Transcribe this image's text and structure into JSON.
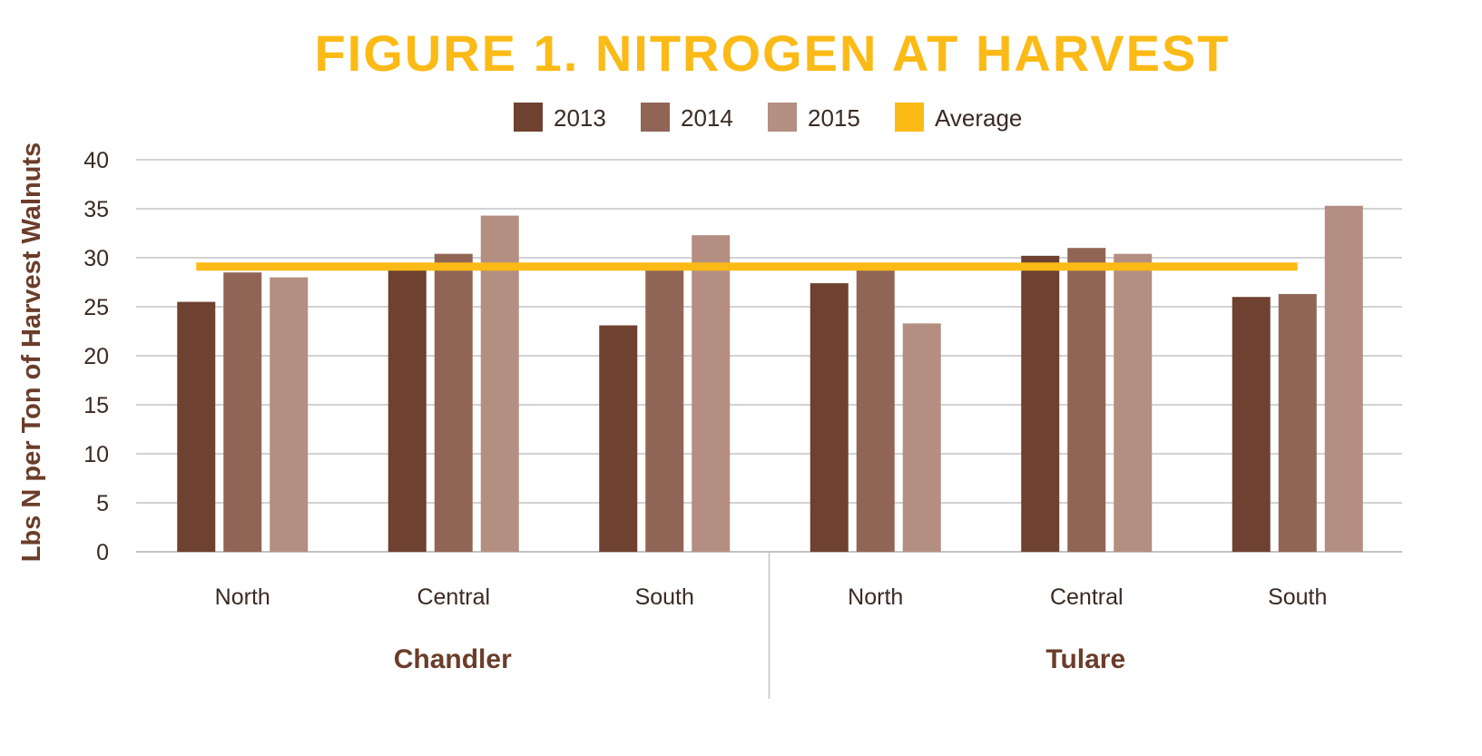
{
  "chart_data": {
    "type": "bar",
    "title": "FIGURE 1. NITROGEN AT HARVEST",
    "ylabel": "Lbs N per Ton of Harvest Walnuts",
    "xlabel": "",
    "ylim": [
      0,
      40
    ],
    "yticks": [
      "0",
      "5",
      "10",
      "15",
      "20",
      "25",
      "30",
      "35",
      "40"
    ],
    "grid": true,
    "legend_position": "top-center",
    "groups": [
      {
        "name": "Chandler",
        "categories": [
          "North",
          "Central",
          "South"
        ]
      },
      {
        "name": "Tulare",
        "categories": [
          "North",
          "Central",
          "South"
        ]
      }
    ],
    "categories": [
      "North",
      "Central",
      "South",
      "North",
      "Central",
      "South"
    ],
    "series": [
      {
        "name": "2013",
        "color": "#6f4130",
        "values": [
          25.5,
          29.0,
          23.1,
          27.4,
          30.2,
          26.0
        ]
      },
      {
        "name": "2014",
        "color": "#916555",
        "values": [
          28.5,
          30.4,
          29.0,
          28.8,
          31.0,
          26.3
        ]
      },
      {
        "name": "2015",
        "color": "#b48e80",
        "values": [
          28.0,
          34.3,
          32.3,
          23.3,
          30.4,
          35.3
        ]
      }
    ],
    "average": {
      "name": "Average",
      "color": "#fbba16",
      "value": 29.1
    },
    "colors": {
      "title": "#fbba16",
      "axis_label": "#6b3d2a",
      "text": "#3a2a24",
      "grid": "#c3c3c3"
    }
  }
}
